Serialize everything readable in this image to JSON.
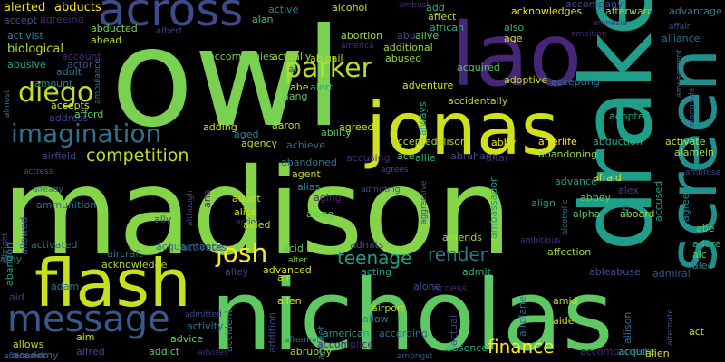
{
  "words": [
    "owl",
    "madison",
    "nicholas",
    "drake",
    "screen",
    "lao",
    "jonas",
    "across",
    "flash",
    "message",
    "diego",
    "parker",
    "imagination",
    "competition",
    "josh",
    "render",
    "teenage",
    "finance",
    "alerted",
    "abducts",
    "accept",
    "agreeing",
    "activist",
    "abducted",
    "ahead",
    "albert",
    "biological",
    "account",
    "actor",
    "abusive",
    "adult",
    "amount",
    "active",
    "alan",
    "accompanies",
    "actually",
    "al",
    "abe",
    "alert",
    "aang",
    "alcohol",
    "ambush",
    "abortion",
    "abu",
    "alive",
    "america",
    "additional",
    "abigail",
    "abused",
    "add",
    "affect",
    "african",
    "acknowledges",
    "accompany",
    "afterward",
    "advantage",
    "amnesia",
    "also",
    "age",
    "ambition",
    "alliance",
    "affair",
    "acquired",
    "adventure",
    "accidentally",
    "adoptive",
    "accepting",
    "adopted",
    "always",
    "accepts",
    "address",
    "afford",
    "aaron",
    "ability",
    "agreed",
    "achieve",
    "agency",
    "aged",
    "adding",
    "acceptedalison",
    "abby",
    "ace",
    "allie",
    "abraham",
    "accusing",
    "altar",
    "afterlife",
    "abandoning",
    "abduction",
    "activate",
    "alamein",
    "afraid",
    "ambrose",
    "abandoned",
    "agent",
    "alias",
    "advance",
    "abbey",
    "alex",
    "accused",
    "agree",
    "ally",
    "ana",
    "action",
    "alice",
    "adopt",
    "aided",
    "along",
    "aging",
    "admitting",
    "amends",
    "align",
    "alpha",
    "aboard",
    "ah",
    "abe",
    "adore",
    "alc",
    "alec",
    "activated",
    "aircraft",
    "acquaintance",
    "activates",
    "acid",
    "alter",
    "admits",
    "ambitious",
    "affection",
    "amy",
    "acknowledge",
    "alley",
    "advanced",
    "acting",
    "admit",
    "access",
    "ableabuse",
    "admiral",
    "abandon",
    "adam",
    "aid",
    "air",
    "allen",
    "alone",
    "amid",
    "airport",
    "allow",
    "aide",
    "allows",
    "aim",
    "activity",
    "advice",
    "addict",
    "advises",
    "accident",
    "aftermath",
    "abruptly",
    "american",
    "according",
    "absence",
    "accompanied",
    "acquire",
    "alien",
    "act",
    "academy",
    "alfred",
    "admitted",
    "accomplice",
    "amongst",
    "almost",
    "ambulance",
    "although",
    "albright",
    "allowed",
    "ammunition",
    "already",
    "actress",
    "airfield",
    "amulet",
    "addition",
    "airplane",
    "actual",
    "allison",
    "alternate",
    "alongside",
    "amusement",
    "ambassador",
    "alcoholic",
    "aggressive",
    "agrees",
    "afterwards",
    "addresses"
  ]
}
